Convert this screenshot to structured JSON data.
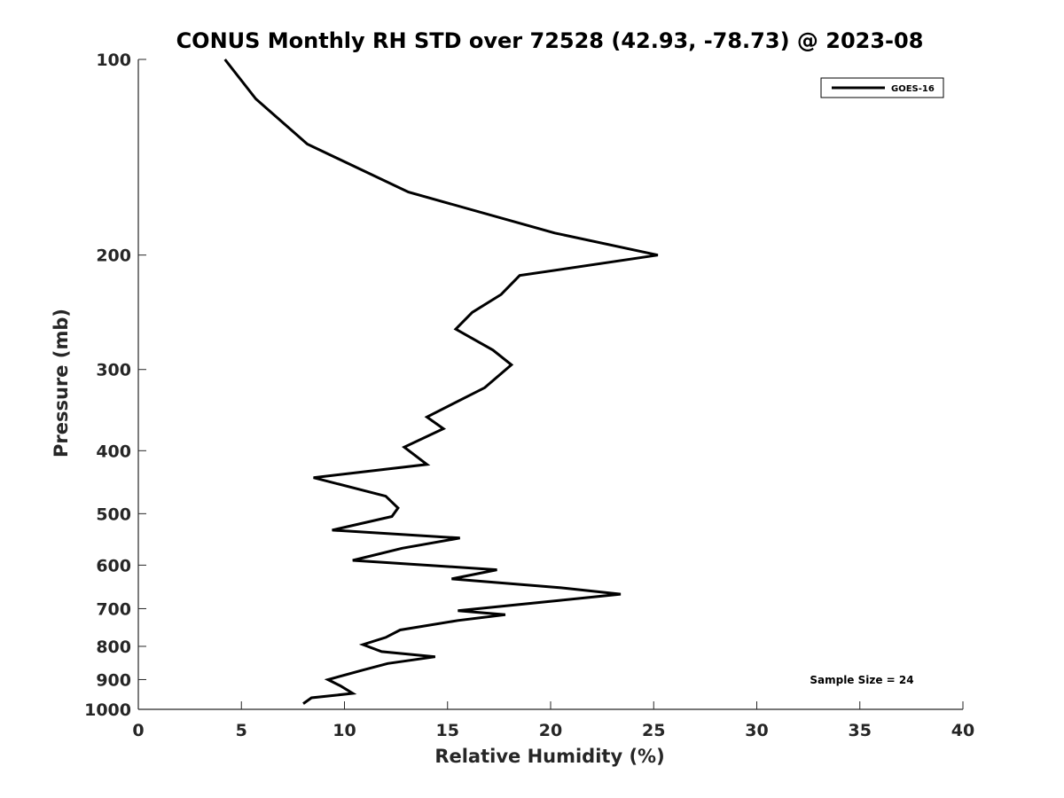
{
  "chart_data": {
    "type": "line",
    "title": "CONUS Monthly RH STD over 72528 (42.93, -78.73) @ 2023-08",
    "xlabel": "Relative Humidity (%)",
    "ylabel": "Pressure (mb)",
    "xlim": [
      0,
      40
    ],
    "ylim": [
      100,
      1000
    ],
    "y_scale": "log",
    "y_reversed": true,
    "grid": false,
    "legend_position": "top-right",
    "x_ticks": [
      "0",
      "5",
      "10",
      "15",
      "20",
      "25",
      "30",
      "35",
      "40"
    ],
    "y_ticks": [
      "100",
      "200",
      "300",
      "400",
      "500",
      "600",
      "700",
      "800",
      "900",
      "1000"
    ],
    "annotation": "Sample Size = 24",
    "series": [
      {
        "name": "GOES-16",
        "color": "#000000",
        "points": [
          [
            4.2,
            100
          ],
          [
            5.7,
            115
          ],
          [
            8.2,
            135
          ],
          [
            13.1,
            160
          ],
          [
            20.2,
            185
          ],
          [
            25.2,
            200
          ],
          [
            18.5,
            215
          ],
          [
            17.6,
            230
          ],
          [
            16.2,
            245
          ],
          [
            15.4,
            260
          ],
          [
            17.2,
            280
          ],
          [
            18.1,
            295
          ],
          [
            16.8,
            320
          ],
          [
            14.0,
            355
          ],
          [
            14.8,
            370
          ],
          [
            12.9,
            395
          ],
          [
            14.0,
            420
          ],
          [
            8.5,
            440
          ],
          [
            12.0,
            470
          ],
          [
            12.6,
            490
          ],
          [
            12.3,
            505
          ],
          [
            9.4,
            530
          ],
          [
            15.6,
            545
          ],
          [
            12.8,
            565
          ],
          [
            10.4,
            590
          ],
          [
            17.4,
            610
          ],
          [
            15.2,
            630
          ],
          [
            20.5,
            650
          ],
          [
            23.4,
            665
          ],
          [
            20.4,
            680
          ],
          [
            15.5,
            705
          ],
          [
            17.8,
            715
          ],
          [
            15.5,
            730
          ],
          [
            12.7,
            755
          ],
          [
            12.0,
            775
          ],
          [
            10.9,
            795
          ],
          [
            11.8,
            815
          ],
          [
            14.4,
            830
          ],
          [
            12.1,
            850
          ],
          [
            10.9,
            870
          ],
          [
            9.2,
            900
          ],
          [
            9.8,
            920
          ],
          [
            10.4,
            945
          ],
          [
            8.4,
            960
          ],
          [
            8.0,
            980
          ]
        ]
      }
    ]
  }
}
